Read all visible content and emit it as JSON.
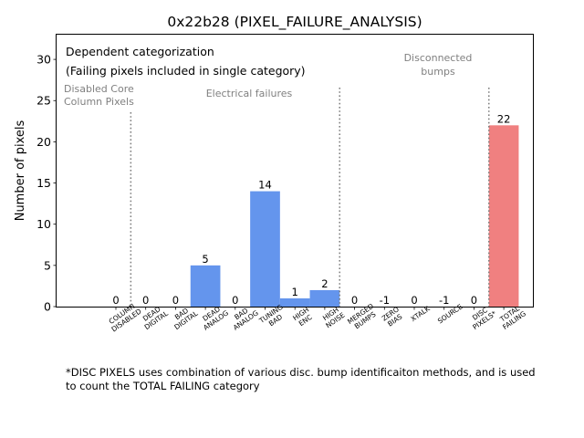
{
  "chart_data": {
    "type": "bar",
    "title": "0x22b28 (PIXEL_FAILURE_ANALYSIS)",
    "ylabel": "Number of pixels",
    "xlabel": "",
    "ylim": [
      0,
      33
    ],
    "yticks": [
      0,
      5,
      10,
      15,
      20,
      25,
      30
    ],
    "grid": false,
    "categories": [
      {
        "line1": "COLUMN",
        "line2": "DISABLED"
      },
      {
        "line1": "DEAD",
        "line2": "DIGITAL"
      },
      {
        "line1": "BAD",
        "line2": "DIGITAL"
      },
      {
        "line1": "DEAD",
        "line2": "ANALOG"
      },
      {
        "line1": "BAD",
        "line2": "ANALOG"
      },
      {
        "line1": "TUNING",
        "line2": "BAD"
      },
      {
        "line1": "HIGH",
        "line2": "ENC"
      },
      {
        "line1": "HIGH",
        "line2": "NOISE"
      },
      {
        "line1": "MERGED",
        "line2": "BUMPS"
      },
      {
        "line1": "ZERO",
        "line2": "BIAS"
      },
      {
        "line1": "",
        "line2": "XTALK"
      },
      {
        "line1": "",
        "line2": "SOURCE"
      },
      {
        "line1": "DISC",
        "line2": "PIXELS*"
      },
      {
        "line1": "TOTAL",
        "line2": "FAILING"
      }
    ],
    "values": [
      0,
      0,
      0,
      5,
      0,
      14,
      1,
      2,
      0,
      -1,
      0,
      -1,
      0,
      22
    ],
    "bar_colors": [
      "#6495ed",
      "#6495ed",
      "#6495ed",
      "#6495ed",
      "#6495ed",
      "#6495ed",
      "#6495ed",
      "#6495ed",
      "#6495ed",
      "#6495ed",
      "#6495ed",
      "#6495ed",
      "#6495ed",
      "#f08080"
    ],
    "annotations": {
      "box_line1": "Dependent categorization",
      "box_line2": "(Failing pixels included in single category)",
      "group_disabled_line1": "Disabled Core",
      "group_disabled_line2": "Column Pixels",
      "group_electrical": "Electrical failures",
      "group_disconnected_line1": "Disconnected",
      "group_disconnected_line2": "bumps"
    },
    "separators_after_category": [
      0,
      7,
      12
    ]
  },
  "footnote": {
    "line1": "*DISC PIXELS uses combination of various disc. bump identificaiton methods, and is used",
    "line2": "to count the TOTAL FAILING category"
  }
}
